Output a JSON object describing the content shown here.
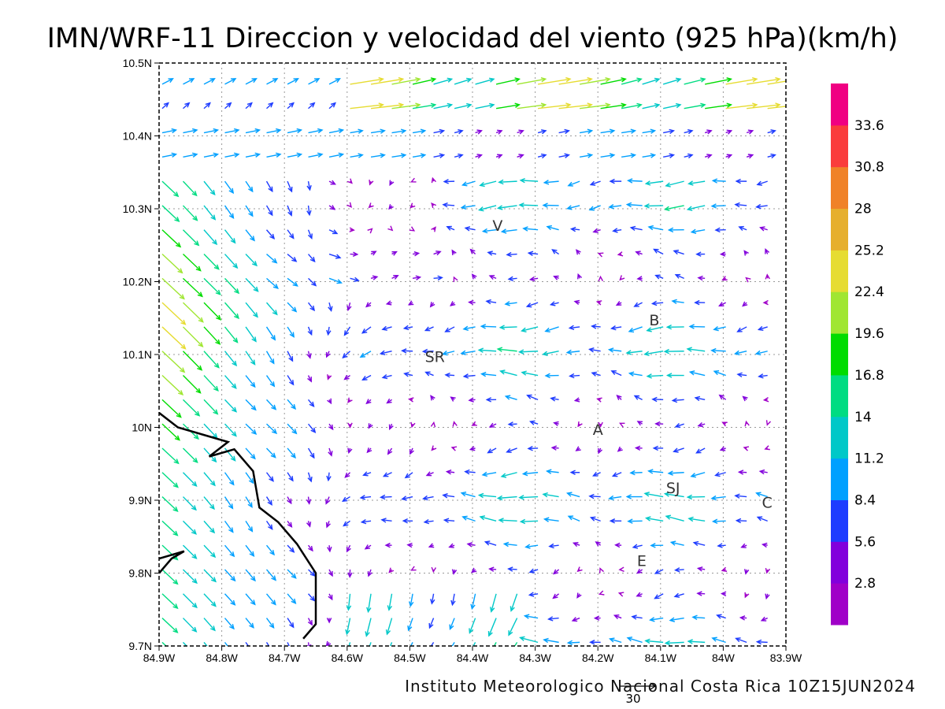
{
  "title": "IMN/WRF-11 Direccion y velocidad del viento (925 hPa)(km/h)",
  "credit": "Instituto Meteorologico Nacional Costa Rica 10Z15JUN2024",
  "reference_vector_label": "30",
  "chart_data": {
    "type": "vector-field",
    "title": "IMN/WRF-11 Direccion y velocidad del viento (925 hPa)(km/h)",
    "variable": "wind direction and speed at 925 hPa",
    "units": "km/h",
    "lon_range": [
      -84.9,
      -83.9
    ],
    "lat_range": [
      9.7,
      10.5
    ],
    "x_ticks": [
      "84.9W",
      "84.8W",
      "84.7W",
      "84.6W",
      "84.5W",
      "84.4W",
      "84.3W",
      "84.2W",
      "84.1W",
      "84W",
      "83.9W"
    ],
    "y_ticks": [
      "9.7N",
      "9.8N",
      "9.9N",
      "10N",
      "10.1N",
      "10.2N",
      "10.3N",
      "10.4N",
      "10.5N"
    ],
    "grid": true,
    "colorbar": {
      "levels": [
        "2.8",
        "5.6",
        "8.4",
        "11.2",
        "14",
        "16.8",
        "19.6",
        "22.4",
        "25.2",
        "28",
        "30.8",
        "33.6"
      ],
      "colors": [
        "#a000c8",
        "#8200dc",
        "#1e3cff",
        "#00a0ff",
        "#00c8c8",
        "#00dc82",
        "#00dc00",
        "#a0e632",
        "#e6dc32",
        "#e6af2d",
        "#f08228",
        "#fa3c3c",
        "#f00082"
      ]
    },
    "places": [
      {
        "label": "V",
        "lon": -84.36,
        "lat": 10.27
      },
      {
        "label": "B",
        "lon": -84.11,
        "lat": 10.14
      },
      {
        "label": "SR",
        "lon": -84.46,
        "lat": 10.09
      },
      {
        "label": "A",
        "lon": -84.2,
        "lat": 9.99
      },
      {
        "label": "SJ",
        "lon": -84.08,
        "lat": 9.91
      },
      {
        "label": "C",
        "lon": -83.93,
        "lat": 9.89
      },
      {
        "label": "E",
        "lon": -84.13,
        "lat": 9.81
      }
    ],
    "coastline": [
      {
        "lon": -84.9,
        "lat": 10.02
      },
      {
        "lon": -84.87,
        "lat": 10.0
      },
      {
        "lon": -84.83,
        "lat": 9.99
      },
      {
        "lon": -84.79,
        "lat": 9.98
      },
      {
        "lon": -84.82,
        "lat": 9.96
      },
      {
        "lon": -84.78,
        "lat": 9.97
      },
      {
        "lon": -84.75,
        "lat": 9.94
      },
      {
        "lon": -84.74,
        "lat": 9.89
      },
      {
        "lon": -84.71,
        "lat": 9.87
      },
      {
        "lon": -84.68,
        "lat": 9.84
      },
      {
        "lon": -84.65,
        "lat": 9.8
      },
      {
        "lon": -84.65,
        "lat": 9.76
      },
      {
        "lon": -84.65,
        "lat": 9.73
      },
      {
        "lon": -84.67,
        "lat": 9.71
      }
    ],
    "island": [
      {
        "lon": -84.9,
        "lat": 9.8
      },
      {
        "lon": -84.88,
        "lat": 9.82
      },
      {
        "lon": -84.86,
        "lat": 9.83
      },
      {
        "lon": -84.9,
        "lat": 9.82
      }
    ],
    "reference_vector_kmh": 30,
    "credit": "Instituto Meteorologico Nacional Costa Rica 10Z15JUN2024"
  }
}
